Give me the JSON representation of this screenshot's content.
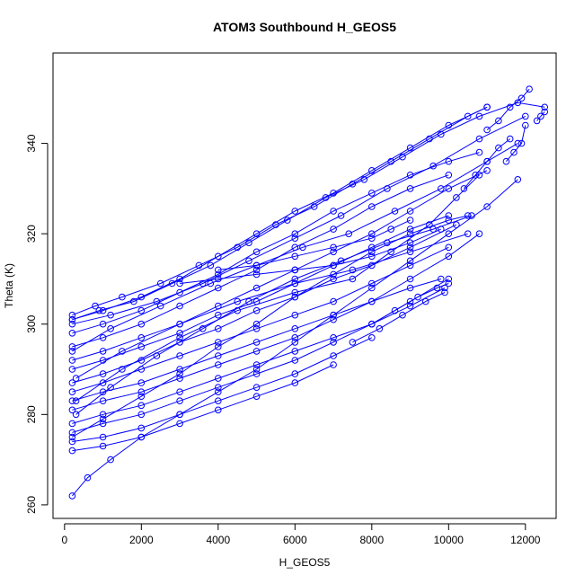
{
  "chart_data": {
    "type": "line",
    "title": "ATOM3 Southbound H_GEOS5",
    "xlabel": "H_GEOS5",
    "ylabel": "Theta (K)",
    "xlim": [
      -300,
      12800
    ],
    "ylim": [
      257,
      360
    ],
    "xticks": [
      0,
      2000,
      4000,
      6000,
      8000,
      10000,
      12000
    ],
    "yticks": [
      260,
      280,
      300,
      320,
      340
    ],
    "xtick_labels": [
      "0",
      "2000",
      "4000",
      "6000",
      "8000",
      "10000",
      "12000"
    ],
    "ytick_labels": [
      "260",
      "280",
      "300",
      "320",
      "340"
    ],
    "grid": false,
    "legend": "none",
    "color": "#0000ff",
    "marker": "open-circle",
    "series": [
      {
        "x": [
          200,
          800,
          1500,
          2500,
          3500,
          4500,
          5500,
          6500,
          7500,
          8500,
          9500,
          10500,
          11000
        ],
        "y": [
          302,
          304,
          306,
          309,
          313,
          317,
          322,
          326,
          331,
          336,
          341,
          346,
          348
        ]
      },
      {
        "x": [
          200,
          1000,
          2000,
          3000,
          4000,
          5000,
          6000,
          7000,
          8000,
          9000,
          10000,
          11000
        ],
        "y": [
          301,
          303,
          306,
          310,
          315,
          320,
          325,
          329,
          334,
          339,
          344,
          348
        ]
      },
      {
        "x": [
          200,
          900,
          1800,
          2800,
          3800,
          4800,
          5800,
          6800,
          7800,
          8800,
          9800,
          10800,
          11800,
          12500
        ],
        "y": [
          301,
          303,
          305,
          309,
          313,
          318,
          323,
          328,
          332,
          337,
          342,
          346,
          349,
          348
        ]
      },
      {
        "x": [
          200,
          1200,
          2400,
          3600,
          4800,
          6000,
          7200,
          8400,
          9600,
          10800,
          12000
        ],
        "y": [
          300,
          302,
          305,
          309,
          314,
          319,
          324,
          330,
          335,
          341,
          346
        ]
      },
      {
        "x": [
          200,
          1000,
          2000,
          3000,
          4000,
          5000,
          6000,
          7000,
          8000,
          9000,
          10000,
          10800
        ],
        "y": [
          298,
          300,
          303,
          307,
          311,
          316,
          320,
          325,
          329,
          333,
          336,
          338
        ]
      },
      {
        "x": [
          200,
          1000,
          2000,
          3000,
          4000,
          5000,
          6000,
          7000,
          8000,
          9000,
          10000
        ],
        "y": [
          295,
          297,
          300,
          304,
          308,
          312,
          317,
          321,
          326,
          330,
          333
        ]
      },
      {
        "x": [
          200,
          1000,
          2000,
          3000,
          4000,
          5000,
          6000,
          7000,
          8000,
          9000,
          10000,
          11000
        ],
        "y": [
          292,
          294,
          297,
          300,
          304,
          308,
          312,
          316,
          320,
          325,
          330,
          334
        ]
      },
      {
        "x": [
          200,
          1000,
          2000,
          3000,
          4000,
          5000,
          6000,
          7000,
          8000,
          9000,
          10000
        ],
        "y": [
          290,
          292,
          295,
          298,
          302,
          305,
          309,
          313,
          317,
          321,
          324
        ]
      },
      {
        "x": [
          200,
          1000,
          2000,
          3000,
          4000,
          5000,
          6000,
          7000,
          8000,
          9000,
          10200
        ],
        "y": [
          287,
          289,
          292,
          296,
          299,
          303,
          306,
          310,
          313,
          317,
          322
        ]
      },
      {
        "x": [
          200,
          1000,
          2000,
          3000,
          4000,
          5000,
          6000,
          7000,
          8000,
          9000,
          10000
        ],
        "y": [
          285,
          287,
          290,
          293,
          296,
          299,
          302,
          305,
          309,
          313,
          317
        ]
      },
      {
        "x": [
          200,
          1000,
          2000,
          3000,
          4000,
          5000,
          6000,
          7000,
          8000,
          9000,
          9800
        ],
        "y": [
          283,
          285,
          287,
          290,
          293,
          296,
          299,
          302,
          305,
          308,
          310
        ]
      },
      {
        "x": [
          200,
          1000,
          2000,
          3000,
          4000,
          5000,
          6000,
          7000,
          8000,
          9000,
          10000,
          10800
        ],
        "y": [
          281,
          283,
          285,
          288,
          291,
          294,
          297,
          301,
          305,
          310,
          315,
          320
        ]
      },
      {
        "x": [
          200,
          1000,
          2000,
          3000,
          4000,
          5000,
          6000,
          7000,
          8000,
          9000,
          9900
        ],
        "y": [
          278,
          280,
          282,
          285,
          288,
          291,
          294,
          297,
          300,
          304,
          308
        ]
      },
      {
        "x": [
          200,
          1000,
          2000,
          3000,
          4000,
          5000,
          6000,
          7000,
          8000,
          9000,
          10000
        ],
        "y": [
          276,
          278,
          280,
          283,
          286,
          289,
          292,
          296,
          300,
          305,
          310
        ]
      },
      {
        "x": [
          200,
          1000,
          2000,
          3000,
          4000,
          5000,
          6000,
          7000,
          8000
        ],
        "y": [
          274,
          275,
          277,
          280,
          283,
          286,
          289,
          293,
          297
        ]
      },
      {
        "x": [
          200,
          1000,
          2000,
          3000,
          4000,
          5000,
          6000,
          7000
        ],
        "y": [
          272,
          273,
          275,
          278,
          281,
          284,
          287,
          291
        ]
      },
      {
        "x": [
          200,
          600,
          1200,
          2000,
          3000,
          4000,
          5000,
          6000,
          7000,
          8000,
          9000,
          10000,
          11000,
          11800
        ],
        "y": [
          262,
          266,
          270,
          275,
          280,
          285,
          290,
          296,
          302,
          308,
          314,
          320,
          326,
          332
        ]
      },
      {
        "x": [
          200,
          1000,
          2000,
          3000,
          4000,
          5000,
          6000,
          7000,
          8000,
          9000,
          10000,
          10500
        ],
        "y": [
          275,
          279,
          284,
          289,
          295,
          300,
          306,
          311,
          316,
          320,
          323,
          324
        ]
      },
      {
        "x": [
          300,
          1200,
          2400,
          3600,
          4800,
          6000,
          7200,
          8400,
          9600,
          10600
        ],
        "y": [
          280,
          286,
          293,
          299,
          305,
          310,
          314,
          318,
          321,
          324
        ]
      },
      {
        "x": [
          300,
          1500,
          3000,
          4500,
          6000,
          7500,
          9000,
          10500
        ],
        "y": [
          288,
          294,
          300,
          305,
          309,
          312,
          316,
          320
        ]
      },
      {
        "x": [
          200,
          1200,
          2500,
          3800,
          5000,
          6200,
          7400,
          8600,
          9800,
          11000,
          11800
        ],
        "y": [
          294,
          299,
          304,
          309,
          313,
          317,
          320,
          325,
          330,
          336,
          340
        ]
      },
      {
        "x": [
          300,
          1500,
          3000,
          4500,
          6000,
          7500,
          8500,
          9500,
          10200,
          10800
        ],
        "y": [
          283,
          290,
          297,
          303,
          307,
          310,
          316,
          322,
          328,
          333
        ]
      },
      {
        "x": [
          11500,
          11700,
          11900,
          12000
        ],
        "y": [
          336,
          338,
          340,
          344
        ]
      },
      {
        "x": [
          12300,
          12400,
          12500
        ],
        "y": [
          345,
          346,
          347
        ]
      },
      {
        "x": [
          8000,
          8600,
          9200,
          9700,
          10000
        ],
        "y": [
          300,
          303,
          306,
          308,
          309
        ]
      },
      {
        "x": [
          7500,
          8200,
          8800,
          9400,
          9900
        ],
        "y": [
          296,
          299,
          302,
          305,
          307
        ]
      },
      {
        "x": [
          3000,
          4000,
          5000,
          6000,
          7000,
          8000,
          9000,
          9800
        ],
        "y": [
          309,
          310,
          311,
          312,
          313,
          315,
          318,
          321
        ]
      },
      {
        "x": [
          4000,
          5000,
          6000,
          7000,
          8000,
          8500,
          9000
        ],
        "y": [
          312,
          313,
          315,
          317,
          319,
          321,
          323
        ]
      },
      {
        "x": [
          11000,
          11300,
          11600,
          11900,
          12100
        ],
        "y": [
          343,
          345,
          348,
          350,
          352
        ]
      },
      {
        "x": [
          10400,
          10700,
          11000,
          11300,
          11600
        ],
        "y": [
          330,
          333,
          336,
          339,
          341
        ]
      }
    ]
  }
}
